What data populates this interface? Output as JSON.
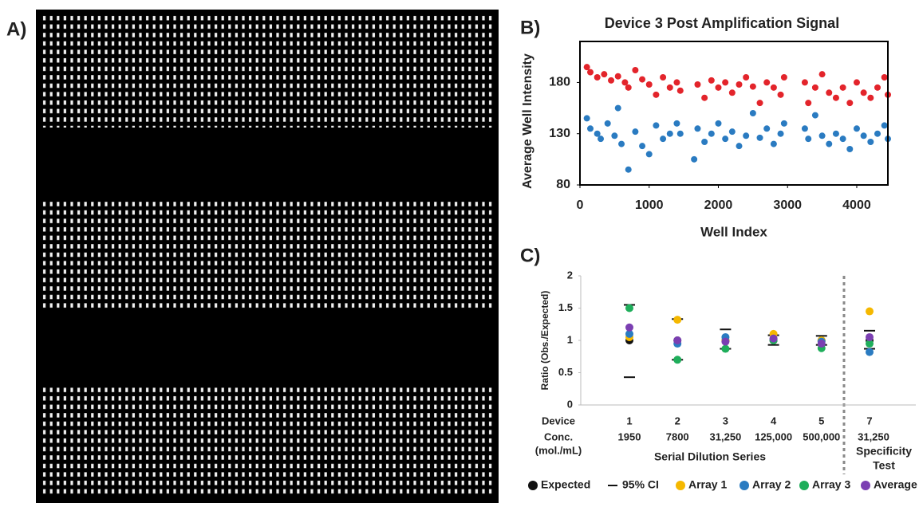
{
  "panel_labels": [
    "A)",
    "B)",
    "C)"
  ],
  "chart_data": [
    {
      "type": "scatter",
      "title": "Device 3 Post Amplification Signal",
      "x_label": "Well Index",
      "y_label": "Average Well Intensity",
      "xlim": [
        0,
        4450
      ],
      "xticks": [
        0,
        1000,
        2000,
        3000,
        4000
      ],
      "ylim": [
        80,
        220
      ],
      "yticks": [
        80,
        130,
        180
      ],
      "series": [
        {
          "color": "#e3242b",
          "x": [
            100,
            150,
            250,
            350,
            450,
            550,
            650,
            700,
            800,
            900,
            1000,
            1100,
            1200,
            1300,
            1400,
            1450,
            1700,
            1800,
            1900,
            2000,
            2100,
            2200,
            2300,
            2400,
            2500,
            2600,
            2700,
            2800,
            2900,
            2950,
            3250,
            3300,
            3400,
            3500,
            3600,
            3700,
            3800,
            3900,
            4000,
            4100,
            4200,
            4300,
            4400,
            4450
          ],
          "values": [
            195,
            190,
            185,
            188,
            182,
            186,
            180,
            175,
            192,
            183,
            178,
            168,
            185,
            175,
            180,
            172,
            178,
            165,
            182,
            175,
            180,
            170,
            178,
            185,
            176,
            160,
            180,
            175,
            168,
            185,
            180,
            160,
            175,
            188,
            170,
            165,
            175,
            160,
            180,
            170,
            165,
            175,
            185,
            168
          ]
        },
        {
          "color": "#2a7bc1",
          "x": [
            100,
            150,
            250,
            300,
            400,
            500,
            550,
            600,
            700,
            800,
            900,
            1000,
            1100,
            1200,
            1300,
            1400,
            1450,
            1650,
            1700,
            1800,
            1900,
            2000,
            2100,
            2200,
            2300,
            2400,
            2500,
            2600,
            2700,
            2800,
            2900,
            2950,
            3250,
            3300,
            3400,
            3500,
            3600,
            3700,
            3800,
            3900,
            4000,
            4100,
            4200,
            4300,
            4400,
            4450
          ],
          "values": [
            145,
            135,
            130,
            125,
            140,
            128,
            155,
            120,
            95,
            132,
            118,
            110,
            138,
            125,
            130,
            140,
            130,
            105,
            135,
            122,
            130,
            140,
            125,
            132,
            118,
            128,
            150,
            126,
            135,
            120,
            130,
            140,
            135,
            125,
            148,
            128,
            120,
            130,
            125,
            115,
            135,
            128,
            122,
            130,
            138,
            125
          ]
        }
      ]
    },
    {
      "type": "dot",
      "y_label": "Ratio (Obs./Expected)",
      "ylim": [
        0,
        2
      ],
      "yticks": [
        0,
        0.5,
        1,
        1.5,
        2
      ],
      "row_labels": [
        "Device",
        "Conc.",
        "(mol./mL)"
      ],
      "categories": [
        "1",
        "2",
        "3",
        "4",
        "5",
        "7"
      ],
      "concentrations": [
        "1950",
        "7800",
        "31,250",
        "125,000",
        "500,000",
        "31,250"
      ],
      "group_label": "Serial Dilution Series",
      "specificity_label": [
        "Specificity",
        "Test"
      ],
      "ci": {
        "name": "95% CI",
        "color": "#111111",
        "upper": [
          1.55,
          1.33,
          1.17,
          1.08,
          1.07,
          1.15
        ],
        "lower": [
          0.43,
          0.7,
          0.87,
          0.93,
          0.93,
          0.87
        ]
      },
      "series": [
        {
          "name": "Expected",
          "color": "#111111",
          "values": [
            1,
            1,
            1,
            1,
            1,
            1
          ]
        },
        {
          "name": "Array 1",
          "color": "#f5b800",
          "values": [
            1.05,
            1.32,
            1.0,
            1.1,
            1.0,
            1.45
          ]
        },
        {
          "name": "Array 2",
          "color": "#2a7bc1",
          "values": [
            1.1,
            0.95,
            1.05,
            1.02,
            0.98,
            0.82
          ]
        },
        {
          "name": "Array 3",
          "color": "#1fae5b",
          "values": [
            1.5,
            0.7,
            0.87,
            1.0,
            0.88,
            0.95
          ]
        },
        {
          "name": "Average",
          "color": "#7b3fb2",
          "values": [
            1.2,
            1.0,
            0.98,
            1.03,
            0.95,
            1.05
          ]
        }
      ]
    }
  ]
}
